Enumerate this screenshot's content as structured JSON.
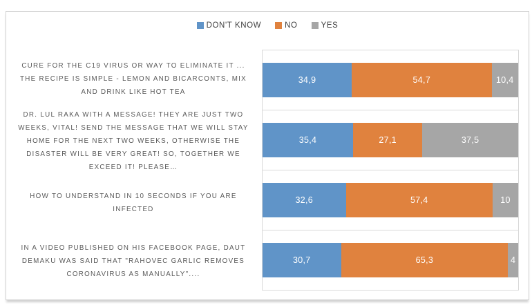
{
  "chart_data": {
    "type": "bar",
    "orientation": "horizontal",
    "stacked": true,
    "unit": "percent",
    "xlim": [
      0,
      100
    ],
    "grid": "category-dividers",
    "legend_position": "top-center",
    "colors": {
      "dont_know": "#6094C8",
      "no": "#E0823E",
      "yes": "#A6A6A6",
      "plot_border": "#D9D9D9",
      "category_text": "#595959",
      "legend_text": "#404040",
      "value_text": "#FFFFFF"
    },
    "series": [
      {
        "name": "DON'T KNOW",
        "color": "#6094C8",
        "values": [
          34.9,
          35.4,
          32.6,
          30.7
        ]
      },
      {
        "name": "NO",
        "color": "#E0823E",
        "values": [
          54.7,
          27.1,
          57.4,
          65.3
        ]
      },
      {
        "name": "YES",
        "color": "#A6A6A6",
        "values": [
          10.4,
          37.5,
          10.0,
          4.0
        ]
      }
    ],
    "categories": [
      "CURE FOR THE C19 VIRUS OR WAY TO ELIMINATE IT ... THE RECIPE IS SIMPLE - LEMON AND BICARCONTS, MIX AND DRINK LIKE HOT TEA",
      "DR. LUL RAKA WITH A MESSAGE! THEY ARE JUST TWO WEEKS, VITAL! SEND THE MESSAGE THAT WE WILL STAY HOME FOR THE NEXT TWO WEEKS, OTHERWISE THE DISASTER WILL BE VERY GREAT! SO, TOGETHER WE EXCEED IT! PLEASE…",
      "HOW TO UNDERSTAND IN 10 SECONDS IF YOU ARE INFECTED",
      "IN A VIDEO PUBLISHED ON HIS FACEBOOK PAGE, DAUT DEMAKU WAS SAID THAT \"RAHOVEC GARLIC REMOVES CORONAVIRUS AS MANUALLY\"...."
    ],
    "data_labels": [
      [
        "34,9",
        "54,7",
        "10,4"
      ],
      [
        "35,4",
        "27,1",
        "37,5"
      ],
      [
        "32,6",
        "57,4",
        "10"
      ],
      [
        "30,7",
        "65,3",
        "4"
      ]
    ]
  }
}
